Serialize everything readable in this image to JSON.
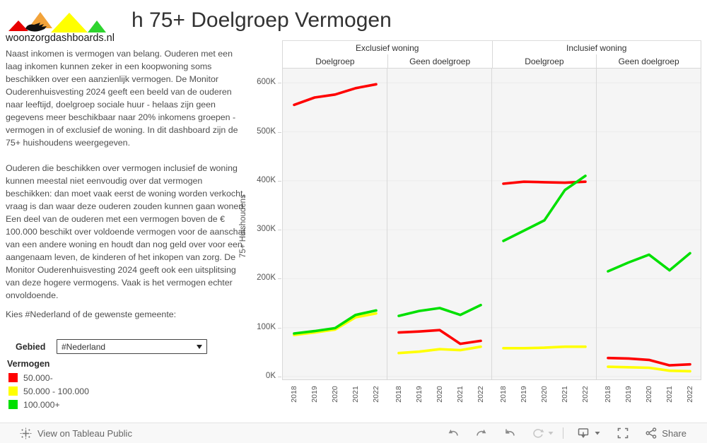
{
  "header": {
    "logo_text": "woonzorgdashboards.nl",
    "title": "h 75+ Doelgroep Vermogen"
  },
  "description": {
    "paragraph1": "Naast inkomen is vermogen van belang. Ouderen met een laag inkomen kunnen zeker in een koopwoning soms beschikken over een aanzienlijk vermogen. De Monitor Ouderenhuisvesting 2024 geeft een beeld van de ouderen naar leeftijd, doelgroep sociale huur - helaas zijn geen gegevens meer beschikbaar naar 20% inkomens groepen - vermogen in of exclusief de woning. In dit dashboard zijn de 75+ huishoudens weergegeven.",
    "paragraph2": "Ouderen die beschikken over vermogen inclusief de woning kunnen meestal niet eenvoudig over dat vermogen beschikken: dan moet vaak eerst de woning worden  verkocht, vraag is dan waar deze ouderen zouden kunnen gaan wonen. Een deel van de ouderen met een vermogen boven de € 100.000 beschikt over voldoende vermogen voor de aanschaf van een andere woning en houdt dan nog geld over voor een aangenaam leven, de kinderen of het inkopen van zorg.  De Monitor Ouderenhuisvesting 2024 geeft ook een uitsplitsing van deze hogere vermogens. Vaak is het vermogen echter onvoldoende.",
    "prompt": "Kies #Nederland of de gewenste gemeente:"
  },
  "filter": {
    "label": "Gebied",
    "value": "#Nederland"
  },
  "legend": {
    "title": "Vermogen",
    "items": [
      {
        "label": "50.000-",
        "color": "#ff0000"
      },
      {
        "label": "50.000 - 100.000",
        "color": "#ffff00"
      },
      {
        "label": "100.000+",
        "color": "#00e000"
      }
    ]
  },
  "chart_data": {
    "type": "line",
    "x": [
      "2018",
      "2019",
      "2020",
      "2021",
      "2022"
    ],
    "ylabel": "75+ Huishoudens",
    "y_ticks": [
      "0K",
      "100K",
      "200K",
      "300K",
      "400K",
      "500K",
      "600K"
    ],
    "ylim_k": [
      0,
      600
    ],
    "grid": true,
    "legend_position": "bottom-left-of-dashboard",
    "col_groups": [
      {
        "label": "Exclusief woning"
      },
      {
        "label": "Inclusief woning"
      }
    ],
    "panels": [
      {
        "group": "Exclusief woning",
        "label": "Doelgroep",
        "series": [
          {
            "name": "50.000-",
            "color": "#ff0000",
            "values_k": [
              555,
              570,
              576,
              589,
              597
            ]
          },
          {
            "name": "50.000 - 100.000",
            "color": "#ffff00",
            "values_k": [
              85,
              90,
              96,
              121,
              129
            ]
          },
          {
            "name": "100.000+",
            "color": "#00e000",
            "values_k": [
              88,
              93,
              99,
              126,
              135
            ]
          }
        ]
      },
      {
        "group": "Exclusief woning",
        "label": "Geen doelgroep",
        "series": [
          {
            "name": "50.000-",
            "color": "#ff0000",
            "values_k": [
              90,
              92,
              95,
              67,
              73
            ]
          },
          {
            "name": "50.000 - 100.000",
            "color": "#ffff00",
            "values_k": [
              48,
              51,
              56,
              54,
              61
            ]
          },
          {
            "name": "100.000+",
            "color": "#00e000",
            "values_k": [
              124,
              134,
              140,
              126,
              146
            ]
          }
        ]
      },
      {
        "group": "Inclusief woning",
        "label": "Doelgroep",
        "series": [
          {
            "name": "50.000-",
            "color": "#ff0000",
            "values_k": [
              394,
              398,
              397,
              396,
              398
            ]
          },
          {
            "name": "50.000 - 100.000",
            "color": "#ffff00",
            "values_k": [
              58,
              58,
              59,
              61,
              61
            ]
          },
          {
            "name": "100.000+",
            "color": "#00e000",
            "values_k": [
              277,
              298,
              319,
              381,
              410
            ]
          }
        ]
      },
      {
        "group": "Inclusief woning",
        "label": "Geen doelgroep",
        "series": [
          {
            "name": "50.000-",
            "color": "#ff0000",
            "values_k": [
              38,
              37,
              34,
              23,
              25
            ]
          },
          {
            "name": "50.000 - 100.000",
            "color": "#ffff00",
            "values_k": [
              20,
              19,
              18,
              12,
              11
            ]
          },
          {
            "name": "100.000+",
            "color": "#00e000",
            "values_k": [
              215,
              233,
              249,
              217,
              252
            ]
          }
        ]
      }
    ]
  },
  "toolbar": {
    "view_label": "View on Tableau Public",
    "share_label": "Share"
  }
}
